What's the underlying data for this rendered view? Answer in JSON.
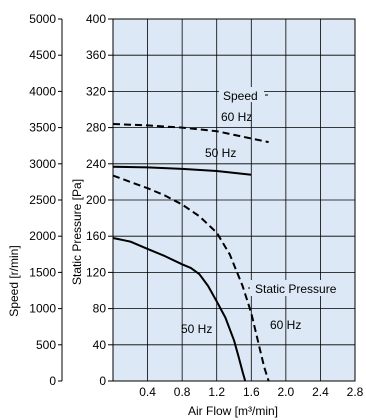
{
  "chart_data": {
    "type": "line",
    "xlabel": "Air Flow [m³/min]",
    "ylabel_left": "Speed [r/min]",
    "ylabel_inner": "Static Pressure [Pa]",
    "xlim": [
      0,
      2.8
    ],
    "ylim_pressure": [
      0,
      400
    ],
    "ylim_speed": [
      0,
      5000
    ],
    "grid": true,
    "background_color": "#dce8f5",
    "x_ticks": [
      "0.4",
      "0.8",
      "1.2",
      "1.6",
      "2.0",
      "2.4",
      "2.8"
    ],
    "x_tick_values": [
      0.4,
      0.8,
      1.2,
      1.6,
      2.0,
      2.4,
      2.8
    ],
    "pressure_ticks": [
      "0",
      "40",
      "80",
      "120",
      "160",
      "200",
      "240",
      "280",
      "320",
      "360",
      "400"
    ],
    "pressure_tick_values": [
      0,
      40,
      80,
      120,
      160,
      200,
      240,
      280,
      320,
      360,
      400
    ],
    "speed_ticks": [
      "0",
      "500",
      "1000",
      "1500",
      "2000",
      "2500",
      "3000",
      "3500",
      "4000",
      "4500",
      "5000"
    ],
    "speed_tick_values": [
      0,
      500,
      1000,
      1500,
      2000,
      2500,
      3000,
      3500,
      4000,
      4500,
      5000
    ],
    "series": [
      {
        "group": "speed",
        "freq": "50 Hz",
        "style": "solid",
        "color": "#000000",
        "x": [
          0,
          0.4,
          0.8,
          1.2,
          1.6
        ],
        "y": [
          2960,
          2950,
          2930,
          2900,
          2850
        ]
      },
      {
        "group": "speed",
        "freq": "60 Hz",
        "style": "dashed",
        "color": "#000000",
        "x": [
          0,
          0.4,
          0.8,
          1.2,
          1.6,
          1.8
        ],
        "y": [
          3550,
          3530,
          3500,
          3450,
          3350,
          3300
        ]
      },
      {
        "group": "static_pressure",
        "freq": "50 Hz",
        "style": "solid",
        "color": "#000000",
        "x": [
          0,
          0.2,
          0.4,
          0.6,
          0.8,
          0.9,
          1.0,
          1.1,
          1.2,
          1.3,
          1.4,
          1.45,
          1.5,
          1.53
        ],
        "y": [
          158,
          154,
          146,
          138,
          129,
          125,
          118,
          105,
          88,
          70,
          45,
          28,
          10,
          0
        ]
      },
      {
        "group": "static_pressure",
        "freq": "60 Hz",
        "style": "dashed",
        "color": "#000000",
        "x": [
          0,
          0.2,
          0.4,
          0.6,
          0.8,
          1.0,
          1.2,
          1.35,
          1.5,
          1.6,
          1.65,
          1.7,
          1.75,
          1.8
        ],
        "y": [
          227,
          220,
          213,
          205,
          195,
          182,
          164,
          140,
          105,
          75,
          55,
          35,
          15,
          0
        ]
      }
    ],
    "annotations": {
      "speed": "Speed",
      "speed_60": "60 Hz",
      "speed_50": "50 Hz",
      "static_pressure": "Static Pressure",
      "pressure_60": "60 Hz",
      "pressure_50": "50 Hz"
    }
  }
}
